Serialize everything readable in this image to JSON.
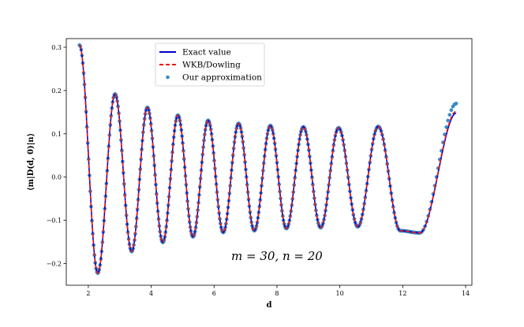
{
  "chart_data": {
    "type": "line",
    "xlabel": "d",
    "ylabel": "⟨m|D(d, 0)|n⟩",
    "xlim": [
      1.3,
      14.2
    ],
    "ylim": [
      -0.25,
      0.32
    ],
    "xticks": [
      2,
      4,
      6,
      8,
      10,
      12,
      14
    ],
    "xtick_labels": [
      "2",
      "4",
      "6",
      "8",
      "10",
      "12",
      "14"
    ],
    "yticks": [
      -0.2,
      -0.1,
      0.0,
      0.1,
      0.2,
      0.3
    ],
    "ytick_labels": [
      "−0.2",
      "−0.1",
      "0.0",
      "0.1",
      "0.2",
      "0.3"
    ],
    "annotation": "m = 30,  n = 20",
    "grid": false,
    "legend_position": "upper-center",
    "extrema": [
      {
        "x": 1.72,
        "y": 0.305
      },
      {
        "x": 2.3,
        "y": -0.222
      },
      {
        "x": 2.85,
        "y": 0.192
      },
      {
        "x": 3.38,
        "y": -0.172
      },
      {
        "x": 3.88,
        "y": 0.161
      },
      {
        "x": 4.37,
        "y": -0.151
      },
      {
        "x": 4.85,
        "y": 0.143
      },
      {
        "x": 5.33,
        "y": -0.138
      },
      {
        "x": 5.81,
        "y": 0.131
      },
      {
        "x": 6.29,
        "y": -0.128
      },
      {
        "x": 6.78,
        "y": 0.124
      },
      {
        "x": 7.28,
        "y": -0.124
      },
      {
        "x": 7.79,
        "y": 0.119
      },
      {
        "x": 8.3,
        "y": -0.119
      },
      {
        "x": 8.84,
        "y": 0.116
      },
      {
        "x": 9.39,
        "y": -0.117
      },
      {
        "x": 9.96,
        "y": 0.114
      },
      {
        "x": 10.57,
        "y": -0.115
      },
      {
        "x": 11.22,
        "y": 0.117
      },
      {
        "x": 11.92,
        "y": -0.124
      },
      {
        "x": 12.55,
        "y": -0.129
      },
      {
        "x": 13.7,
        "y": 0.15
      }
    ],
    "series": [
      {
        "name": "Exact value",
        "style": "solid",
        "color": "#0000cc",
        "end_y": 0.148
      },
      {
        "name": "WKB/Dowling",
        "style": "dashed",
        "color": "#ee1111",
        "end_y": 0.152
      },
      {
        "name": "Our approximation",
        "style": "markers",
        "color": "#3a8fd0",
        "end_y": 0.17
      }
    ]
  }
}
